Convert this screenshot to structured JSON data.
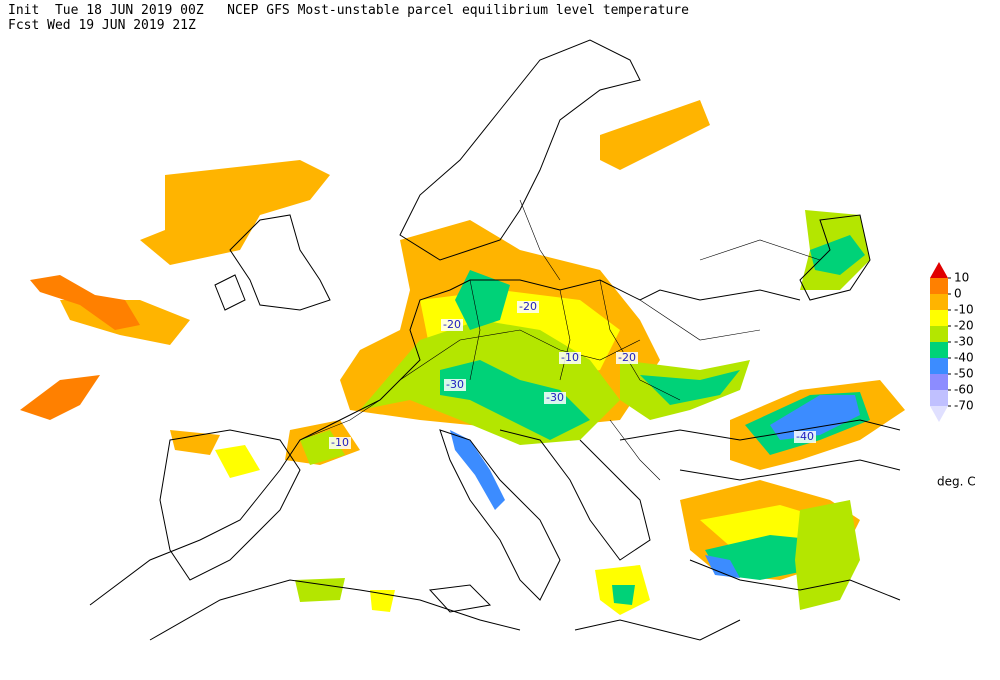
{
  "header": {
    "line1": "Init  Tue 18 JUN 2019 00Z   NCEP GFS Most-unstable parcel equilibrium level temperature",
    "line2": "Fcst Wed 19 JUN 2019 21Z"
  },
  "colorbar": {
    "levels": [
      10,
      0,
      -10,
      -20,
      -30,
      -40,
      -50,
      -60,
      -70
    ],
    "colors": [
      "#e00000",
      "#ff8000",
      "#ffb400",
      "#ffff00",
      "#b4e600",
      "#00d278",
      "#3c8cff",
      "#8c8cff",
      "#c0c0ff",
      "#e0e0ff"
    ],
    "unit": "deg. C"
  },
  "contour_labels": [
    "-20",
    "-20",
    "-10",
    "-20",
    "-30",
    "-30",
    "-10",
    "-40"
  ]
}
